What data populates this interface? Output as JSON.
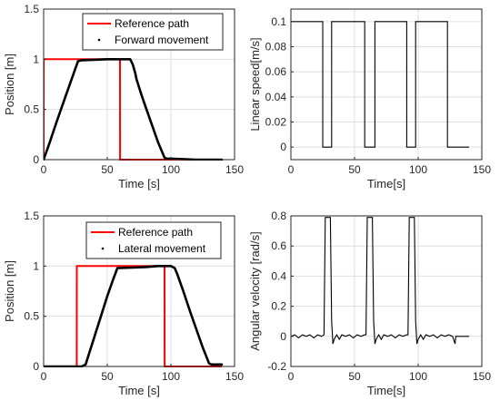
{
  "colors": {
    "reference": "#ff0000",
    "measured": "#000000",
    "axis": "#262626",
    "grid": "#dfdfdf"
  },
  "chart_data": [
    {
      "type": "line",
      "title": "",
      "xlabel": "Time [s]",
      "ylabel": "Position [m]",
      "xlim": [
        0,
        150
      ],
      "ylim": [
        0,
        1.5
      ],
      "xticks": [
        0,
        50,
        100,
        150
      ],
      "yticks": [
        0,
        0.5,
        1,
        1.5
      ],
      "xtick_labels": [
        "0",
        "50",
        "100",
        "150"
      ],
      "ytick_labels": [
        "0",
        "0.5",
        "1",
        "1.5"
      ],
      "grid": true,
      "legend": {
        "location": "top-right",
        "entries": [
          "Reference path",
          "Forward movement"
        ]
      },
      "series": [
        {
          "name": "Reference path",
          "style": "line",
          "color": "#ff0000",
          "x": [
            0,
            0.1,
            60,
            60.1,
            140
          ],
          "y": [
            0,
            1,
            1,
            0,
            0
          ]
        },
        {
          "name": "Forward movement",
          "style": "dots",
          "color": "#000000",
          "x": [
            0,
            5,
            10,
            15,
            20,
            25,
            27,
            30,
            40,
            50,
            60,
            65,
            68,
            70,
            72,
            73,
            74,
            77,
            80,
            85,
            90,
            95,
            97,
            100,
            110,
            120,
            130,
            140
          ],
          "y": [
            0,
            0.18,
            0.37,
            0.55,
            0.73,
            0.91,
            0.98,
            0.99,
            0.995,
            1,
            1,
            1,
            1,
            0.95,
            0.86,
            0.8,
            0.76,
            0.64,
            0.53,
            0.35,
            0.17,
            0.02,
            0.01,
            0.01,
            0.005,
            0,
            0,
            0
          ]
        }
      ]
    },
    {
      "type": "line",
      "title": "",
      "xlabel": "Time[s]",
      "ylabel": "Linear speed[m/s]",
      "xlim": [
        0,
        150
      ],
      "ylim": [
        -0.01,
        0.11
      ],
      "xticks": [
        0,
        50,
        100,
        150
      ],
      "yticks": [
        0,
        0.02,
        0.04,
        0.06,
        0.08,
        0.1
      ],
      "xtick_labels": [
        "0",
        "50",
        "100",
        "150"
      ],
      "ytick_labels": [
        "0",
        "0.02",
        "0.04",
        "0.06",
        "0.08",
        "0.1"
      ],
      "grid": true,
      "series": [
        {
          "style": "line",
          "color": "#000000",
          "x": [
            0,
            25,
            25,
            32,
            32,
            58,
            58,
            66,
            66,
            91,
            91,
            98,
            98,
            123,
            123,
            130,
            130,
            140
          ],
          "y": [
            0.1,
            0.1,
            0,
            0,
            0.1,
            0.1,
            0,
            0,
            0.1,
            0.1,
            0,
            0,
            0.1,
            0.1,
            0,
            0,
            0,
            0
          ]
        }
      ]
    },
    {
      "type": "line",
      "title": "",
      "xlabel": "Time [s]",
      "ylabel": "Position [m]",
      "xlim": [
        0,
        150
      ],
      "ylim": [
        0,
        1.5
      ],
      "xticks": [
        0,
        50,
        100,
        150
      ],
      "yticks": [
        0,
        0.5,
        1,
        1.5
      ],
      "xtick_labels": [
        "0",
        "50",
        "100",
        "150"
      ],
      "ytick_labels": [
        "0",
        "0.5",
        "1",
        "1.5"
      ],
      "grid": true,
      "legend": {
        "location": "top-right",
        "entries": [
          "Reference path",
          "Lateral movement"
        ]
      },
      "series": [
        {
          "name": "Reference path",
          "style": "line",
          "color": "#ff0000",
          "x": [
            0,
            26,
            26.1,
            95,
            95.1,
            140
          ],
          "y": [
            0,
            0,
            1,
            1,
            0,
            0
          ]
        },
        {
          "name": "Lateral movement",
          "style": "dots",
          "color": "#000000",
          "x": [
            0,
            25,
            30,
            33,
            35,
            40,
            45,
            50,
            55,
            58,
            60,
            70,
            80,
            90,
            100,
            103,
            105,
            110,
            115,
            120,
            125,
            130,
            132,
            135,
            140
          ],
          "y": [
            0,
            0,
            0,
            0.02,
            0.1,
            0.3,
            0.5,
            0.7,
            0.88,
            0.98,
            0.98,
            0.985,
            0.99,
            1,
            1,
            0.98,
            0.92,
            0.74,
            0.55,
            0.37,
            0.19,
            0.03,
            0.02,
            0.02,
            0.02
          ]
        }
      ]
    },
    {
      "type": "line",
      "title": "",
      "xlabel": "Time[s]",
      "ylabel": "Angular velocity [rad/s]",
      "xlim": [
        0,
        150
      ],
      "ylim": [
        -0.2,
        0.8
      ],
      "xticks": [
        0,
        50,
        100,
        150
      ],
      "yticks": [
        -0.2,
        0,
        0.2,
        0.4,
        0.6,
        0.8
      ],
      "xtick_labels": [
        "0",
        "50",
        "100",
        "150"
      ],
      "ytick_labels": [
        "-0.2",
        "0",
        "0.2",
        "0.4",
        "0.6",
        "0.8"
      ],
      "grid": true,
      "series": [
        {
          "style": "line",
          "color": "#000000",
          "x": [
            0,
            3,
            6,
            9,
            12,
            15,
            18,
            21,
            24,
            26,
            27,
            31,
            32,
            33,
            34,
            36,
            38,
            40,
            43,
            46,
            49,
            52,
            55,
            58,
            59,
            60,
            64,
            65,
            66,
            67,
            69,
            71,
            73,
            76,
            79,
            82,
            85,
            88,
            91,
            92,
            93,
            97,
            98,
            99,
            100,
            102,
            104,
            106,
            109,
            112,
            115,
            118,
            121,
            124,
            127,
            129,
            129.5,
            140
          ],
          "y": [
            0,
            0.01,
            -0.01,
            0.01,
            0,
            0.01,
            -0.01,
            0.01,
            0,
            0.01,
            0.79,
            0.79,
            0.1,
            -0.05,
            -0.02,
            0.01,
            -0.02,
            0.01,
            0,
            0.01,
            -0.01,
            0.01,
            0,
            0.01,
            0.01,
            0.79,
            0.79,
            0.1,
            -0.05,
            -0.02,
            0.01,
            -0.02,
            0.01,
            0,
            0.01,
            -0.01,
            0.01,
            0,
            0.01,
            0.01,
            0.79,
            0.79,
            0.1,
            -0.05,
            -0.02,
            0.01,
            -0.02,
            0.01,
            0,
            0.01,
            -0.01,
            0.01,
            0,
            0.01,
            0,
            -0.05,
            0,
            0
          ]
        }
      ]
    }
  ]
}
